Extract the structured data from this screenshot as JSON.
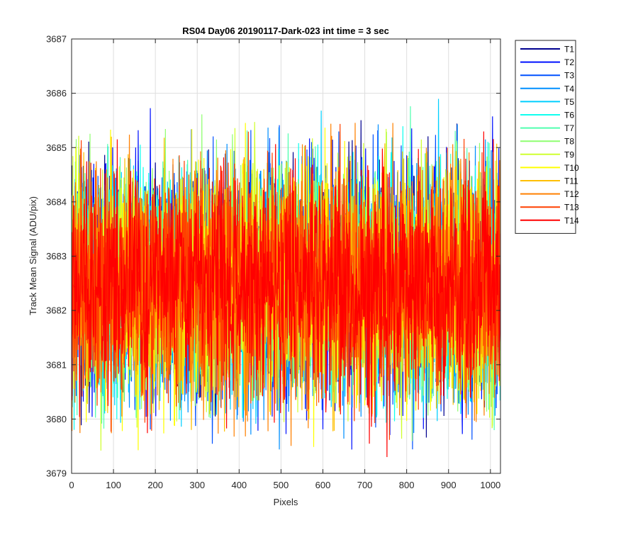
{
  "chart_data": {
    "type": "line",
    "title": "RS04 Day06 20190117-Dark-023 int time = 3 sec",
    "xlabel": "Pixels",
    "ylabel": "Track Mean Signal (ADU/pix)",
    "xlim": [
      0,
      1024
    ],
    "ylim": [
      3679,
      3687
    ],
    "xticks": [
      0,
      100,
      200,
      300,
      400,
      500,
      600,
      700,
      800,
      900,
      1000
    ],
    "yticks": [
      3679,
      3680,
      3681,
      3682,
      3683,
      3684,
      3685,
      3686,
      3687
    ],
    "grid": true,
    "legend_location": "outside-right",
    "num_points_per_series": 1024,
    "series_summary": {
      "center": 3682.5,
      "approx_std": 1.0,
      "min_observed": 3679.3,
      "max_observed": 3686.6
    },
    "series": [
      {
        "name": "T1",
        "color": "#00008f"
      },
      {
        "name": "T2",
        "color": "#0010ff"
      },
      {
        "name": "T3",
        "color": "#0050ff"
      },
      {
        "name": "T4",
        "color": "#008fff"
      },
      {
        "name": "T5",
        "color": "#00cfff"
      },
      {
        "name": "T6",
        "color": "#10ffef"
      },
      {
        "name": "T7",
        "color": "#50ffaf"
      },
      {
        "name": "T8",
        "color": "#8fff70"
      },
      {
        "name": "T9",
        "color": "#cfff30"
      },
      {
        "name": "T10",
        "color": "#ffff00"
      },
      {
        "name": "T11",
        "color": "#ffbf00"
      },
      {
        "name": "T12",
        "color": "#ff8000"
      },
      {
        "name": "T13",
        "color": "#ff4000"
      },
      {
        "name": "T14",
        "color": "#ff0000"
      }
    ]
  }
}
